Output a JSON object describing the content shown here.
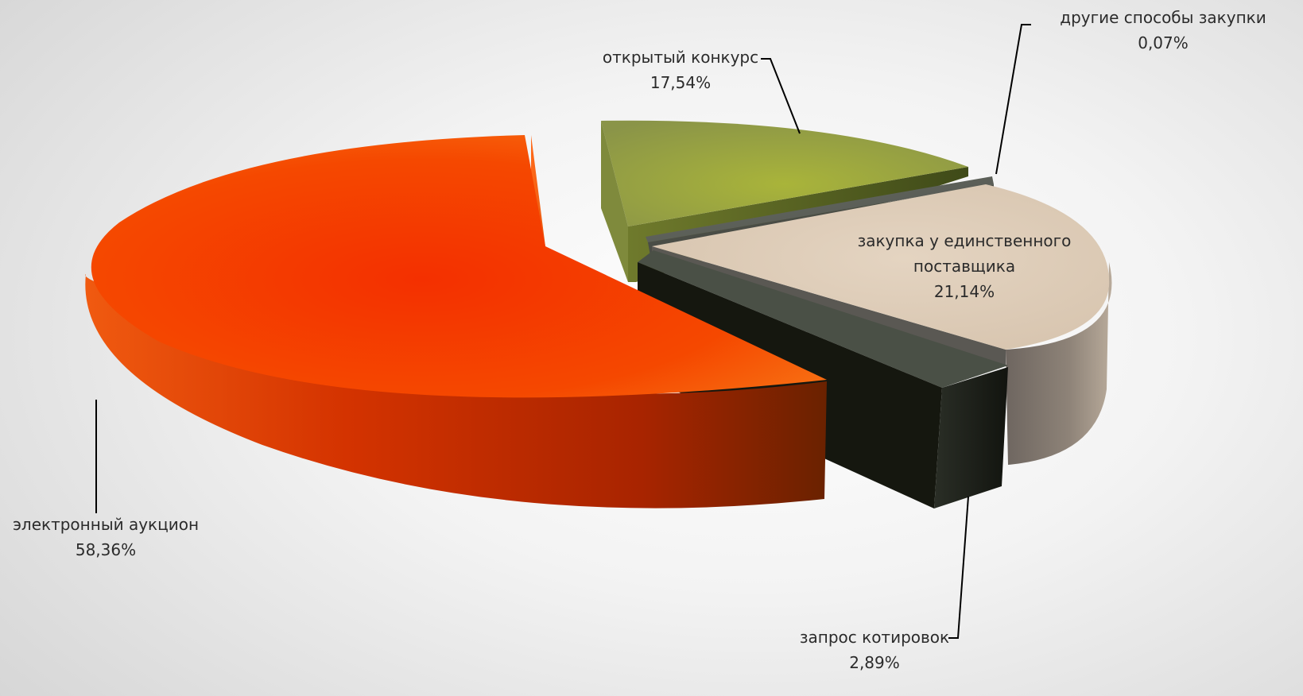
{
  "chart_data": {
    "type": "pie",
    "title": "",
    "slices": [
      {
        "label": "открытый конкурс",
        "percent_text": "17,54%",
        "value": 17.54,
        "color": "#9aa83a"
      },
      {
        "label": "другие способы закупки",
        "percent_text": "0,07%",
        "value": 0.07,
        "color": "#5f625c"
      },
      {
        "label": "закупка у единственного поставщика",
        "label_lines": [
          "закупка у единственного",
          "поставщика"
        ],
        "percent_text": "21,14%",
        "value": 21.14,
        "color": "#ddccb8"
      },
      {
        "label": "запрос котировок",
        "percent_text": "2,89%",
        "value": 2.89,
        "color": "#1f231c"
      },
      {
        "label": "электронный аукцион",
        "percent_text": "58,36%",
        "value": 58.36,
        "color": "#f23c00"
      }
    ],
    "legend": "none",
    "style": "3d-exploded"
  }
}
